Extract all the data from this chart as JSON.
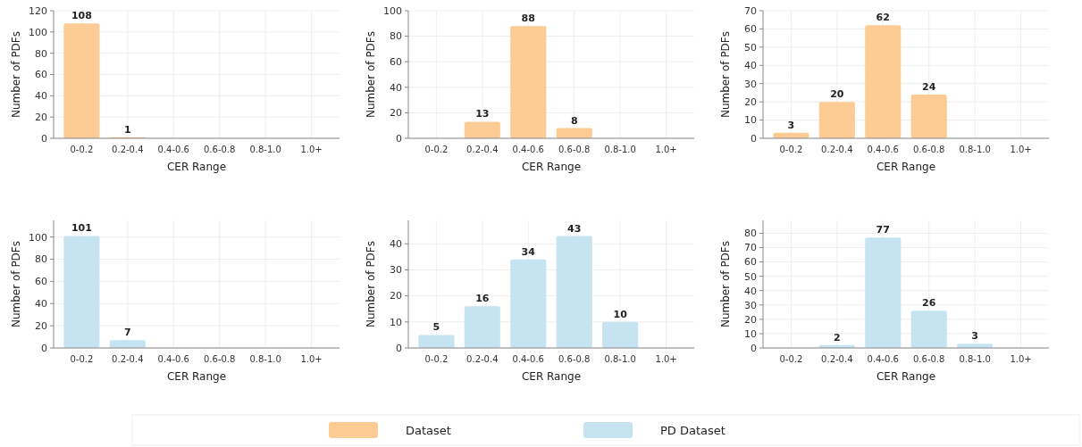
{
  "chart_data": [
    {
      "type": "bar",
      "categories": [
        "0-0.2",
        "0.2-0.4",
        "0.4-0.6",
        "0.6-0.8",
        "0.8-1.0",
        "1.0+"
      ],
      "xlabel": "CER Range",
      "ylabel": "Number of PDFs",
      "ylim": [
        0,
        120
      ],
      "yticks": [
        0,
        20,
        40,
        60,
        80,
        100,
        120
      ],
      "grid": true,
      "legend": "bottom",
      "series": [
        {
          "name": "Dataset",
          "color": "#fccc94",
          "values": [
            108,
            1,
            0,
            0,
            0,
            0
          ],
          "value_labels": [
            "108",
            "1",
            null,
            null,
            null,
            null
          ]
        }
      ]
    },
    {
      "type": "bar",
      "categories": [
        "0-0.2",
        "0.2-0.4",
        "0.4-0.6",
        "0.6-0.8",
        "0.8-1.0",
        "1.0+"
      ],
      "xlabel": "CER Range",
      "ylabel": "Number of PDFs",
      "ylim": [
        0,
        100
      ],
      "yticks": [
        0,
        20,
        40,
        60,
        80,
        100
      ],
      "grid": true,
      "legend": "bottom",
      "series": [
        {
          "name": "Dataset",
          "color": "#fccc94",
          "values": [
            0,
            13,
            88,
            8,
            0,
            0
          ],
          "value_labels": [
            null,
            "13",
            "88",
            "8",
            null,
            null
          ]
        }
      ]
    },
    {
      "type": "bar",
      "categories": [
        "0-0.2",
        "0.2-0.4",
        "0.4-0.6",
        "0.6-0.8",
        "0.8-1.0",
        "1.0+"
      ],
      "xlabel": "CER Range",
      "ylabel": "Number of PDFs",
      "ylim": [
        0,
        70
      ],
      "yticks": [
        0,
        10,
        20,
        30,
        40,
        50,
        60,
        70
      ],
      "grid": true,
      "legend": "bottom",
      "series": [
        {
          "name": "Dataset",
          "color": "#fccc94",
          "values": [
            3,
            20,
            62,
            24,
            0,
            0
          ],
          "value_labels": [
            "3",
            "20",
            "62",
            "24",
            null,
            null
          ]
        }
      ]
    },
    {
      "type": "bar",
      "categories": [
        "0-0.2",
        "0.2-0.4",
        "0.4-0.6",
        "0.6-0.8",
        "0.8-1.0",
        "1.0+"
      ],
      "xlabel": "CER Range",
      "ylabel": "Number of PDFs",
      "ylim": [
        0,
        115
      ],
      "yticks": [
        0,
        20,
        40,
        60,
        80,
        100
      ],
      "grid": true,
      "legend": "bottom",
      "series": [
        {
          "name": "PD Dataset",
          "color": "#c5e3f1",
          "values": [
            101,
            7,
            0,
            0,
            0,
            0
          ],
          "value_labels": [
            "101",
            "7",
            null,
            null,
            null,
            null
          ]
        }
      ]
    },
    {
      "type": "bar",
      "categories": [
        "0-0.2",
        "0.2-0.4",
        "0.4-0.6",
        "0.6-0.8",
        "0.8-1.0",
        "1.0+"
      ],
      "xlabel": "CER Range",
      "ylabel": "Number of PDFs",
      "ylim": [
        0,
        49
      ],
      "yticks": [
        0,
        10,
        20,
        30,
        40
      ],
      "grid": true,
      "legend": "bottom",
      "series": [
        {
          "name": "PD Dataset",
          "color": "#c5e3f1",
          "values": [
            5,
            16,
            34,
            43,
            10,
            0
          ],
          "value_labels": [
            "5",
            "16",
            "34",
            "43",
            "10",
            null
          ]
        }
      ]
    },
    {
      "type": "bar",
      "categories": [
        "0-0.2",
        "0.2-0.4",
        "0.4-0.6",
        "0.6-0.8",
        "0.8-1.0",
        "1.0+"
      ],
      "xlabel": "CER Range",
      "ylabel": "Number of PDFs",
      "ylim": [
        0,
        89
      ],
      "yticks": [
        0,
        10,
        20,
        30,
        40,
        50,
        60,
        70,
        80
      ],
      "grid": true,
      "legend": "bottom",
      "series": [
        {
          "name": "PD Dataset",
          "color": "#c5e3f1",
          "values": [
            0,
            2,
            77,
            26,
            3,
            0
          ],
          "value_labels": [
            null,
            "2",
            "77",
            "26",
            "3",
            null
          ]
        }
      ]
    }
  ]
}
